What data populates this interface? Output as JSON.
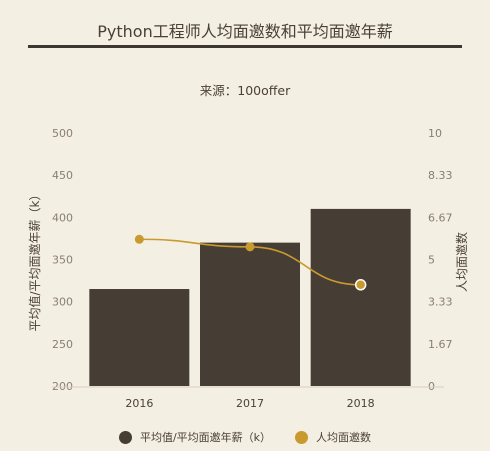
{
  "chart_data": {
    "type": "bar",
    "title": "Python工程师人均面邀数和平均面邀年薪",
    "subtitle": "来源：100offer",
    "categories": [
      "2016",
      "2017",
      "2018"
    ],
    "series": [
      {
        "name": "平均值/平均面邀年薪（k）",
        "type": "bar",
        "axis": "left",
        "color": "#463d35",
        "values": [
          315,
          370,
          410
        ]
      },
      {
        "name": "人均面邀数",
        "type": "line",
        "axis": "right",
        "color": "#c99a2e",
        "values": [
          5.8,
          5.5,
          4.0
        ]
      }
    ],
    "ylabel_left": "平均值/平均面邀年薪（k）",
    "ylabel_right": "人均面邀数",
    "ylim_left": [
      200,
      500
    ],
    "ylim_right": [
      0,
      10
    ],
    "yticks_left": [
      "200",
      "250",
      "300",
      "350",
      "400",
      "450",
      "500"
    ],
    "yticks_right": [
      "0",
      "1.67",
      "3.33",
      "5",
      "6.67",
      "8.33",
      "10"
    ],
    "grid": false,
    "legend_position": "bottom"
  }
}
